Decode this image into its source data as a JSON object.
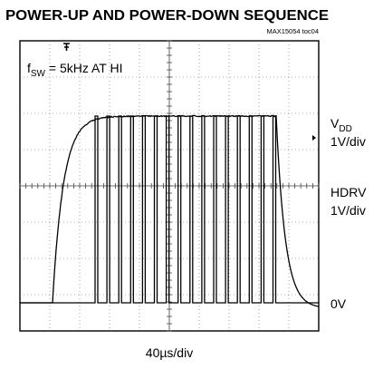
{
  "header": {
    "title": "POWER-UP AND POWER-DOWN SEQUENCE",
    "tag": "MAX15054 toc04"
  },
  "annotation": {
    "main": "f",
    "sub": "SW",
    "rest": " = 5kHz AT HI"
  },
  "channels": [
    {
      "name": {
        "main": "V",
        "sub": "DD"
      },
      "scale": "1V/div"
    },
    {
      "name": {
        "main": "HDRV"
      },
      "scale": "1V/div"
    }
  ],
  "ground_label": "0V",
  "timebase": "40µs/div"
}
